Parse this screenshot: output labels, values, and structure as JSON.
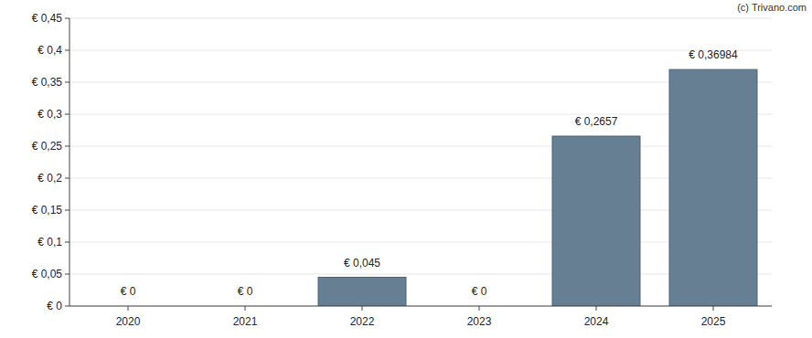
{
  "chart_data": {
    "type": "bar",
    "annotations": [
      "(c) Trivano.com"
    ],
    "categories": [
      "2020",
      "2021",
      "2022",
      "2023",
      "2024",
      "2025"
    ],
    "values": [
      0,
      0,
      0.045,
      0,
      0.2657,
      0.36984
    ],
    "value_labels": [
      "€ 0",
      "€ 0",
      "€ 0,045",
      "€ 0",
      "€ 0,2657",
      "€ 0,36984"
    ],
    "color": "#667f93",
    "ylim": [
      0,
      0.45
    ],
    "yticks": [
      {
        "value": 0,
        "label": "€ 0"
      },
      {
        "value": 0.05,
        "label": "€ 0,05"
      },
      {
        "value": 0.1,
        "label": "€ 0,1"
      },
      {
        "value": 0.15,
        "label": "€ 0,15"
      },
      {
        "value": 0.2,
        "label": "€ 0,2"
      },
      {
        "value": 0.25,
        "label": "€ 0,25"
      },
      {
        "value": 0.3,
        "label": "€ 0,3"
      },
      {
        "value": 0.35,
        "label": "€ 0,35"
      },
      {
        "value": 0.4,
        "label": "€ 0,4"
      },
      {
        "value": 0.45,
        "label": "€ 0,45"
      }
    ],
    "grid": true,
    "data_labels": true
  }
}
